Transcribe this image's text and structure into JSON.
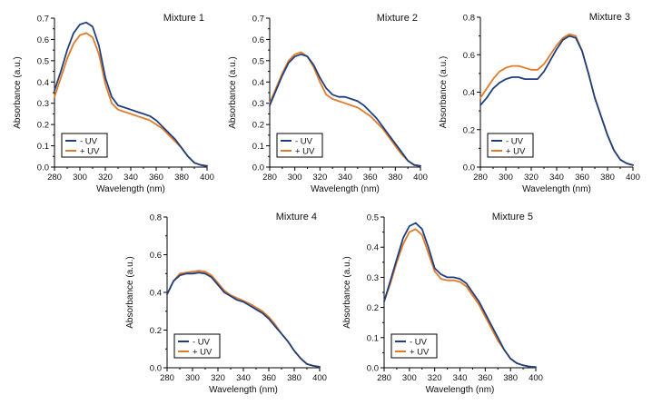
{
  "chart_data": [
    {
      "type": "line",
      "title": "Mixture 1",
      "xlabel": "Wavelength (nm)",
      "ylabel": "Absorbance (a.u.)",
      "xlim": [
        280,
        400
      ],
      "ylim": [
        0,
        0.7
      ],
      "xticks": [
        280,
        300,
        320,
        340,
        360,
        380,
        400
      ],
      "yticks": [
        0.0,
        0.1,
        0.2,
        0.3,
        0.4,
        0.5,
        0.6,
        0.7
      ],
      "legend_position": "bottom-left",
      "x": [
        280,
        285,
        290,
        295,
        300,
        305,
        310,
        315,
        320,
        325,
        330,
        335,
        340,
        345,
        350,
        355,
        360,
        365,
        370,
        375,
        380,
        385,
        390,
        395,
        400
      ],
      "series": [
        {
          "name": "- UV",
          "color": "#1f3f7f",
          "values": [
            0.36,
            0.45,
            0.55,
            0.63,
            0.67,
            0.68,
            0.66,
            0.57,
            0.42,
            0.33,
            0.29,
            0.28,
            0.27,
            0.26,
            0.25,
            0.24,
            0.22,
            0.19,
            0.16,
            0.13,
            0.09,
            0.05,
            0.02,
            0.01,
            0.005
          ]
        },
        {
          "name": "+ UV",
          "color": "#e07b2a",
          "values": [
            0.33,
            0.42,
            0.51,
            0.58,
            0.62,
            0.63,
            0.61,
            0.53,
            0.39,
            0.3,
            0.27,
            0.26,
            0.25,
            0.24,
            0.23,
            0.22,
            0.2,
            0.18,
            0.15,
            0.12,
            0.09,
            0.05,
            0.02,
            0.01,
            0.005
          ]
        }
      ]
    },
    {
      "type": "line",
      "title": "Mixture 2",
      "xlabel": "Wavelength (nm)",
      "ylabel": "Absorbance (a.u.)",
      "xlim": [
        280,
        400
      ],
      "ylim": [
        0,
        0.7
      ],
      "xticks": [
        280,
        300,
        320,
        340,
        360,
        380,
        400
      ],
      "yticks": [
        0.0,
        0.1,
        0.2,
        0.3,
        0.4,
        0.5,
        0.6,
        0.7
      ],
      "legend_position": "bottom-left",
      "x": [
        280,
        285,
        290,
        295,
        300,
        305,
        310,
        315,
        320,
        325,
        330,
        335,
        340,
        345,
        350,
        355,
        360,
        365,
        370,
        375,
        380,
        385,
        390,
        395,
        400
      ],
      "series": [
        {
          "name": "- UV",
          "color": "#1f3f7f",
          "values": [
            0.29,
            0.36,
            0.43,
            0.49,
            0.52,
            0.53,
            0.52,
            0.48,
            0.42,
            0.37,
            0.34,
            0.33,
            0.33,
            0.32,
            0.31,
            0.29,
            0.26,
            0.23,
            0.19,
            0.15,
            0.11,
            0.07,
            0.03,
            0.01,
            0.005
          ]
        },
        {
          "name": "+ UV",
          "color": "#e07b2a",
          "values": [
            0.3,
            0.37,
            0.44,
            0.5,
            0.53,
            0.54,
            0.52,
            0.47,
            0.4,
            0.34,
            0.32,
            0.31,
            0.3,
            0.29,
            0.28,
            0.26,
            0.24,
            0.21,
            0.18,
            0.14,
            0.1,
            0.06,
            0.03,
            0.01,
            0.005
          ]
        }
      ]
    },
    {
      "type": "line",
      "title": "Mixture 3",
      "xlabel": "Wavelength (nm)",
      "ylabel": "Absorbance (a.u.)",
      "xlim": [
        280,
        400
      ],
      "ylim": [
        0,
        0.8
      ],
      "xticks": [
        280,
        300,
        320,
        340,
        360,
        380,
        400
      ],
      "yticks": [
        0.0,
        0.2,
        0.4,
        0.6,
        0.8
      ],
      "legend_position": "bottom-left",
      "x": [
        280,
        285,
        290,
        295,
        300,
        305,
        310,
        315,
        320,
        325,
        330,
        335,
        340,
        345,
        350,
        355,
        360,
        365,
        370,
        375,
        380,
        385,
        390,
        395,
        400
      ],
      "series": [
        {
          "name": "- UV",
          "color": "#1f3f7f",
          "values": [
            0.33,
            0.37,
            0.42,
            0.45,
            0.47,
            0.48,
            0.48,
            0.47,
            0.47,
            0.47,
            0.51,
            0.57,
            0.63,
            0.68,
            0.7,
            0.69,
            0.62,
            0.5,
            0.37,
            0.27,
            0.17,
            0.09,
            0.04,
            0.02,
            0.01
          ]
        },
        {
          "name": "+ UV",
          "color": "#e07b2a",
          "values": [
            0.37,
            0.42,
            0.47,
            0.51,
            0.53,
            0.54,
            0.54,
            0.53,
            0.52,
            0.52,
            0.55,
            0.6,
            0.65,
            0.69,
            0.71,
            0.7,
            0.62,
            0.5,
            0.37,
            0.27,
            0.17,
            0.09,
            0.04,
            0.02,
            0.01
          ]
        }
      ]
    },
    {
      "type": "line",
      "title": "Mixture 4",
      "xlabel": "Wavelength (nm)",
      "ylabel": "Absorbance (a.u.)",
      "xlim": [
        280,
        400
      ],
      "ylim": [
        0,
        0.8
      ],
      "xticks": [
        280,
        300,
        320,
        340,
        360,
        380,
        400
      ],
      "yticks": [
        0.0,
        0.2,
        0.4,
        0.6,
        0.8
      ],
      "legend_position": "bottom-left",
      "x": [
        280,
        285,
        290,
        295,
        300,
        305,
        310,
        315,
        320,
        325,
        330,
        335,
        340,
        345,
        350,
        355,
        360,
        365,
        370,
        375,
        380,
        385,
        390,
        395,
        400
      ],
      "series": [
        {
          "name": "- UV",
          "color": "#1f3f7f",
          "values": [
            0.39,
            0.46,
            0.49,
            0.5,
            0.5,
            0.505,
            0.5,
            0.48,
            0.44,
            0.4,
            0.38,
            0.36,
            0.35,
            0.33,
            0.31,
            0.29,
            0.26,
            0.22,
            0.18,
            0.14,
            0.09,
            0.05,
            0.02,
            0.01,
            0.005
          ]
        },
        {
          "name": "+ UV",
          "color": "#e07b2a",
          "values": [
            0.39,
            0.46,
            0.5,
            0.505,
            0.51,
            0.515,
            0.51,
            0.49,
            0.45,
            0.41,
            0.385,
            0.37,
            0.355,
            0.34,
            0.32,
            0.3,
            0.27,
            0.23,
            0.18,
            0.14,
            0.09,
            0.05,
            0.02,
            0.01,
            0.005
          ]
        }
      ]
    },
    {
      "type": "line",
      "title": "Mixture 5",
      "xlabel": "Wavelength (nm)",
      "ylabel": "Absorbance (a.u.)",
      "xlim": [
        280,
        400
      ],
      "ylim": [
        0,
        0.5
      ],
      "xticks": [
        280,
        300,
        320,
        340,
        360,
        380,
        400
      ],
      "yticks": [
        0.0,
        0.1,
        0.2,
        0.3,
        0.4,
        0.5
      ],
      "legend_position": "bottom-left",
      "x": [
        280,
        285,
        290,
        295,
        300,
        305,
        310,
        315,
        320,
        325,
        330,
        335,
        340,
        345,
        350,
        355,
        360,
        365,
        370,
        375,
        380,
        385,
        390,
        395,
        400
      ],
      "series": [
        {
          "name": "- UV",
          "color": "#1f3f7f",
          "values": [
            0.22,
            0.29,
            0.36,
            0.43,
            0.47,
            0.48,
            0.46,
            0.4,
            0.33,
            0.31,
            0.3,
            0.3,
            0.295,
            0.28,
            0.25,
            0.22,
            0.18,
            0.14,
            0.1,
            0.06,
            0.03,
            0.015,
            0.008,
            0.004,
            0.002
          ]
        },
        {
          "name": "+ UV",
          "color": "#e07b2a",
          "values": [
            0.22,
            0.28,
            0.35,
            0.41,
            0.45,
            0.46,
            0.44,
            0.38,
            0.32,
            0.295,
            0.29,
            0.29,
            0.285,
            0.27,
            0.24,
            0.21,
            0.17,
            0.13,
            0.09,
            0.06,
            0.03,
            0.015,
            0.008,
            0.004,
            0.002
          ]
        }
      ]
    }
  ]
}
